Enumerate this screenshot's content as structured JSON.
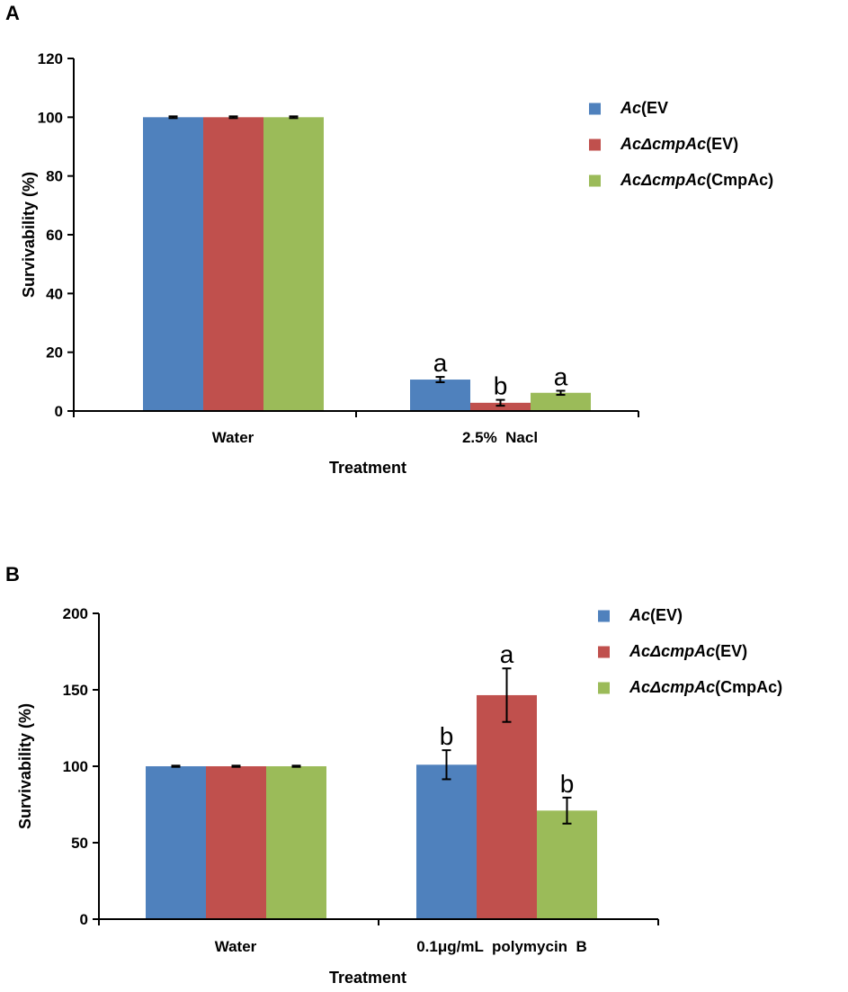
{
  "panels": {
    "a_label": "A",
    "b_label": "B"
  },
  "chart_data": [
    {
      "type": "bar",
      "panel": "A",
      "categories": [
        "Water",
        "2.5%  Nacl"
      ],
      "series": [
        {
          "name": "Ac(EV",
          "name_italic": "Ac",
          "name_plain": "(EV",
          "color": "#4F81BD",
          "values": [
            100,
            10.7
          ],
          "errors": [
            0.3,
            0.9
          ],
          "letters": [
            "",
            "a"
          ]
        },
        {
          "name": "AcΔcmpAc(EV)",
          "name_italic": "AcΔcmpAc",
          "name_plain": "(EV)",
          "color": "#C0504D",
          "values": [
            100,
            2.8
          ],
          "errors": [
            0.3,
            1.0
          ],
          "letters": [
            "",
            "b"
          ]
        },
        {
          "name": "AcΔcmpAc(CmpAc)",
          "name_italic": "AcΔcmpAc",
          "name_plain": "(CmpAc)",
          "color": "#9BBB59",
          "values": [
            100,
            6.2
          ],
          "errors": [
            0.3,
            0.7
          ],
          "letters": [
            "",
            "a"
          ]
        }
      ],
      "xlabel": "Treatment",
      "ylabel": "Survivability (%)",
      "ylim": [
        0,
        120
      ],
      "yticks": [
        "0",
        "20",
        "40",
        "60",
        "80",
        "100",
        "120"
      ],
      "legend_position": "right"
    },
    {
      "type": "bar",
      "panel": "B",
      "categories": [
        "Water",
        "0.1μg/mL  polymycin  B"
      ],
      "series": [
        {
          "name": "Ac(EV)",
          "name_italic": "Ac",
          "name_plain": "(EV)",
          "color": "#4F81BD",
          "values": [
            100,
            101
          ],
          "errors": [
            0.4,
            9.5
          ],
          "letters": [
            "",
            "b"
          ]
        },
        {
          "name": "AcΔcmpAc(EV)",
          "name_italic": "AcΔcmpAc",
          "name_plain": "(EV)",
          "color": "#C0504D",
          "values": [
            100,
            146.5
          ],
          "errors": [
            0.4,
            17.5
          ],
          "letters": [
            "",
            "a"
          ]
        },
        {
          "name": "AcΔcmpAc(CmpAc)",
          "name_italic": "AcΔcmpAc",
          "name_plain": "(CmpAc)",
          "color": "#9BBB59",
          "values": [
            100,
            71
          ],
          "errors": [
            0.4,
            8.5
          ],
          "letters": [
            "",
            "b"
          ]
        }
      ],
      "xlabel": "Treatment",
      "ylabel": "Survivability (%)",
      "ylim": [
        0,
        200
      ],
      "yticks": [
        "0",
        "50",
        "100",
        "150",
        "200"
      ],
      "legend_position": "top-right"
    }
  ]
}
